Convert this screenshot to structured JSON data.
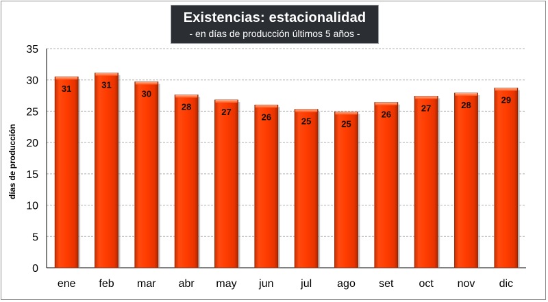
{
  "chart_data": {
    "type": "bar",
    "title": "Existencias: estacionalidad",
    "subtitle": "- en días de producción últimos 5 años -",
    "xlabel": "",
    "ylabel": "días de producción",
    "ylim": [
      0,
      35
    ],
    "yticks": [
      "0",
      "5",
      "10",
      "15",
      "20",
      "25",
      "30",
      "35"
    ],
    "categories": [
      "ene",
      "feb",
      "mar",
      "abr",
      "may",
      "jun",
      "jul",
      "ago",
      "set",
      "oct",
      "nov",
      "dic"
    ],
    "values": [
      30.5,
      31.1,
      29.7,
      27.6,
      26.8,
      26.0,
      25.3,
      24.9,
      26.4,
      27.4,
      27.9,
      28.7
    ],
    "labels": [
      "31",
      "31",
      "30",
      "28",
      "27",
      "26",
      "25",
      "25",
      "26",
      "27",
      "28",
      "29"
    ],
    "grid": true,
    "legend": "none",
    "colors": {
      "bar": "#ff3c00",
      "bar_dark": "#b22a00",
      "grid": "#b0b0b0",
      "title_bg": "#2b2f33"
    }
  }
}
